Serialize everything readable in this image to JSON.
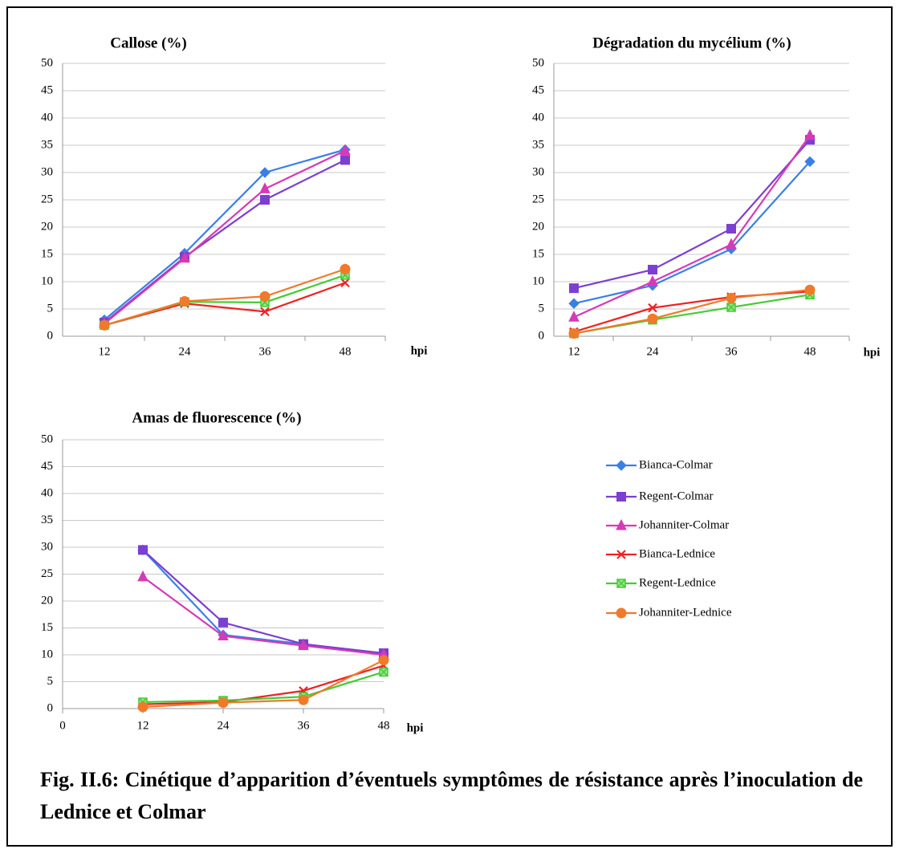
{
  "chart_data": [
    {
      "type": "line",
      "title": "Callose (%)",
      "x_label": "hpi",
      "categories": [
        "12",
        "24",
        "36",
        "48"
      ],
      "ylim": [
        0,
        50
      ],
      "yticks": [
        0,
        5,
        10,
        15,
        20,
        25,
        30,
        35,
        40,
        45,
        50
      ],
      "grid": true,
      "series": [
        {
          "color": "#3a7fe6",
          "marker": "diamond",
          "values": [
            3,
            15.2,
            30,
            34.2
          ]
        },
        {
          "color": "#7b3fd1",
          "marker": "square",
          "values": [
            2.5,
            14.5,
            25,
            32.3
          ]
        },
        {
          "color": "#d63ab5",
          "marker": "triangle",
          "values": [
            2.3,
            14.3,
            27,
            34
          ]
        },
        {
          "color": "#ee2222",
          "marker": "x",
          "values": [
            2,
            6,
            4.5,
            9.8
          ]
        },
        {
          "color": "#44cc33",
          "marker": "square-x",
          "values": [
            2,
            6.3,
            6.2,
            11.2
          ]
        },
        {
          "color": "#f07a2a",
          "marker": "circle",
          "values": [
            2,
            6.4,
            7.3,
            12.3
          ]
        }
      ]
    },
    {
      "type": "line",
      "title": "Dégradation du mycélium (%)",
      "x_label": "hpi",
      "categories": [
        "12",
        "24",
        "36",
        "48"
      ],
      "ylim": [
        0,
        50
      ],
      "yticks": [
        0,
        5,
        10,
        15,
        20,
        25,
        30,
        35,
        40,
        45,
        50
      ],
      "grid": true,
      "series": [
        {
          "color": "#3a7fe6",
          "marker": "diamond",
          "values": [
            6,
            9.3,
            16,
            32
          ]
        },
        {
          "color": "#7b3fd1",
          "marker": "square",
          "values": [
            8.8,
            12.2,
            19.7,
            36
          ]
        },
        {
          "color": "#d63ab5",
          "marker": "triangle",
          "values": [
            3.5,
            10,
            16.8,
            36.8
          ]
        },
        {
          "color": "#ee2222",
          "marker": "x",
          "values": [
            0.8,
            5.2,
            7.2,
            8.2
          ]
        },
        {
          "color": "#44cc33",
          "marker": "square-x",
          "values": [
            0.5,
            3,
            5.3,
            7.6
          ]
        },
        {
          "color": "#f07a2a",
          "marker": "circle",
          "values": [
            0.5,
            3.2,
            7,
            8.5
          ]
        }
      ]
    },
    {
      "type": "scatter-line",
      "title": "Amas de fluorescence (%)",
      "x_label": "hpi",
      "x": [
        12,
        24,
        36,
        48
      ],
      "xlim": [
        0,
        48
      ],
      "xticks": [
        0,
        12,
        24,
        36,
        48
      ],
      "ylim": [
        0,
        50
      ],
      "yticks": [
        0,
        5,
        10,
        15,
        20,
        25,
        30,
        35,
        40,
        45,
        50
      ],
      "grid": true,
      "series": [
        {
          "name": "Bianca-Colmar",
          "color": "#3a7fe6",
          "marker": "diamond",
          "values": [
            29.5,
            13.7,
            12,
            10.2
          ]
        },
        {
          "name": "Regent-Colmar",
          "color": "#7b3fd1",
          "marker": "square",
          "values": [
            29.5,
            16,
            12,
            10.3
          ]
        },
        {
          "name": "Johanniter-Colmar",
          "color": "#d63ab5",
          "marker": "triangle",
          "values": [
            24.5,
            13.5,
            11.7,
            10
          ]
        },
        {
          "name": "Bianca-Lednice",
          "color": "#ee2222",
          "marker": "x",
          "values": [
            0.8,
            1.2,
            3.3,
            8
          ]
        },
        {
          "name": "Regent-Lednice",
          "color": "#44cc33",
          "marker": "square-x",
          "values": [
            1.2,
            1.5,
            2.2,
            6.8
          ]
        },
        {
          "name": "Johanniter-Lednice",
          "color": "#f07a2a",
          "marker": "circle",
          "values": [
            0.3,
            1.1,
            1.6,
            9
          ]
        }
      ]
    }
  ],
  "caption": "Fig. II.6: Cinétique d’apparition d’éventuels symptômes de résistance après l’inoculation de Lednice et Colmar"
}
